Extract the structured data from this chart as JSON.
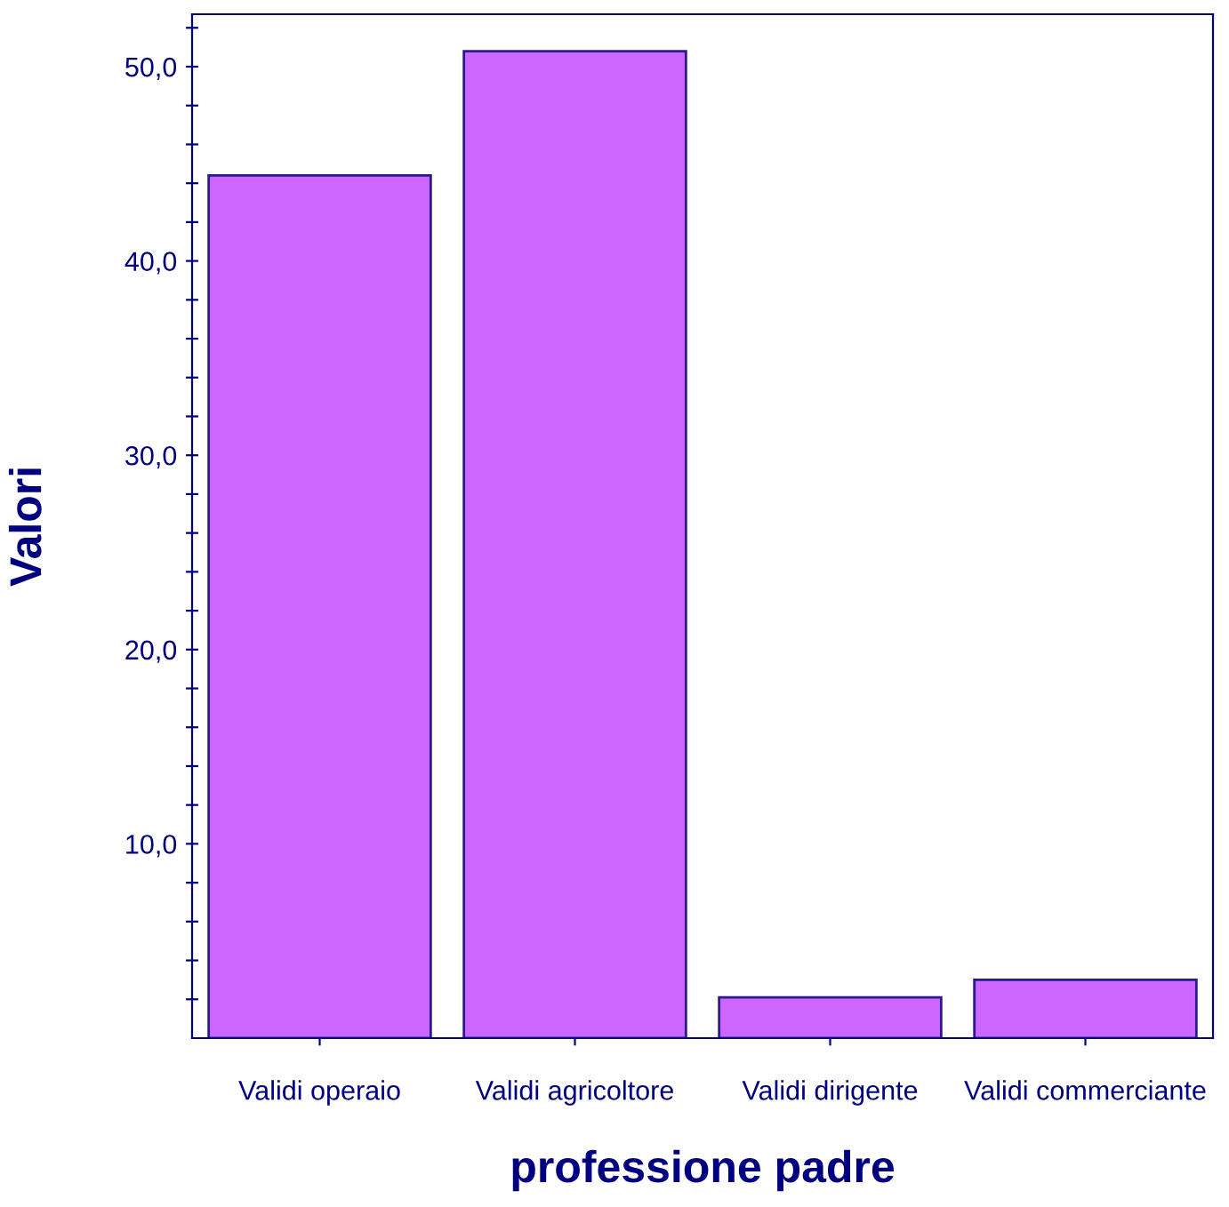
{
  "chart_data": {
    "type": "bar",
    "xlabel": "professione padre",
    "ylabel": "Valori",
    "categories": [
      "Validi operaio",
      "Validi agricoltore",
      "Validi dirigente",
      "Validi commerciante"
    ],
    "values": [
      44.4,
      50.8,
      2.1,
      3.0
    ],
    "color": "#cc66ff",
    "ylim": [
      0,
      52.7
    ],
    "yticks": [
      {
        "value": 2,
        "label": null
      },
      {
        "value": 4,
        "label": null
      },
      {
        "value": 6,
        "label": null
      },
      {
        "value": 8,
        "label": null
      },
      {
        "value": 10,
        "label": "10,0"
      },
      {
        "value": 12,
        "label": null
      },
      {
        "value": 14,
        "label": null
      },
      {
        "value": 16,
        "label": null
      },
      {
        "value": 18,
        "label": null
      },
      {
        "value": 20,
        "label": "20,0"
      },
      {
        "value": 22,
        "label": null
      },
      {
        "value": 24,
        "label": null
      },
      {
        "value": 26,
        "label": null
      },
      {
        "value": 28,
        "label": null
      },
      {
        "value": 30,
        "label": "30,0"
      },
      {
        "value": 32,
        "label": null
      },
      {
        "value": 34,
        "label": null
      },
      {
        "value": 36,
        "label": null
      },
      {
        "value": 38,
        "label": null
      },
      {
        "value": 40,
        "label": "40,0"
      },
      {
        "value": 42,
        "label": null
      },
      {
        "value": 44,
        "label": null
      },
      {
        "value": 46,
        "label": null
      },
      {
        "value": 48,
        "label": null
      },
      {
        "value": 50,
        "label": "50,0"
      },
      {
        "value": 52,
        "label": null
      }
    ],
    "grid": false,
    "legend": false
  }
}
